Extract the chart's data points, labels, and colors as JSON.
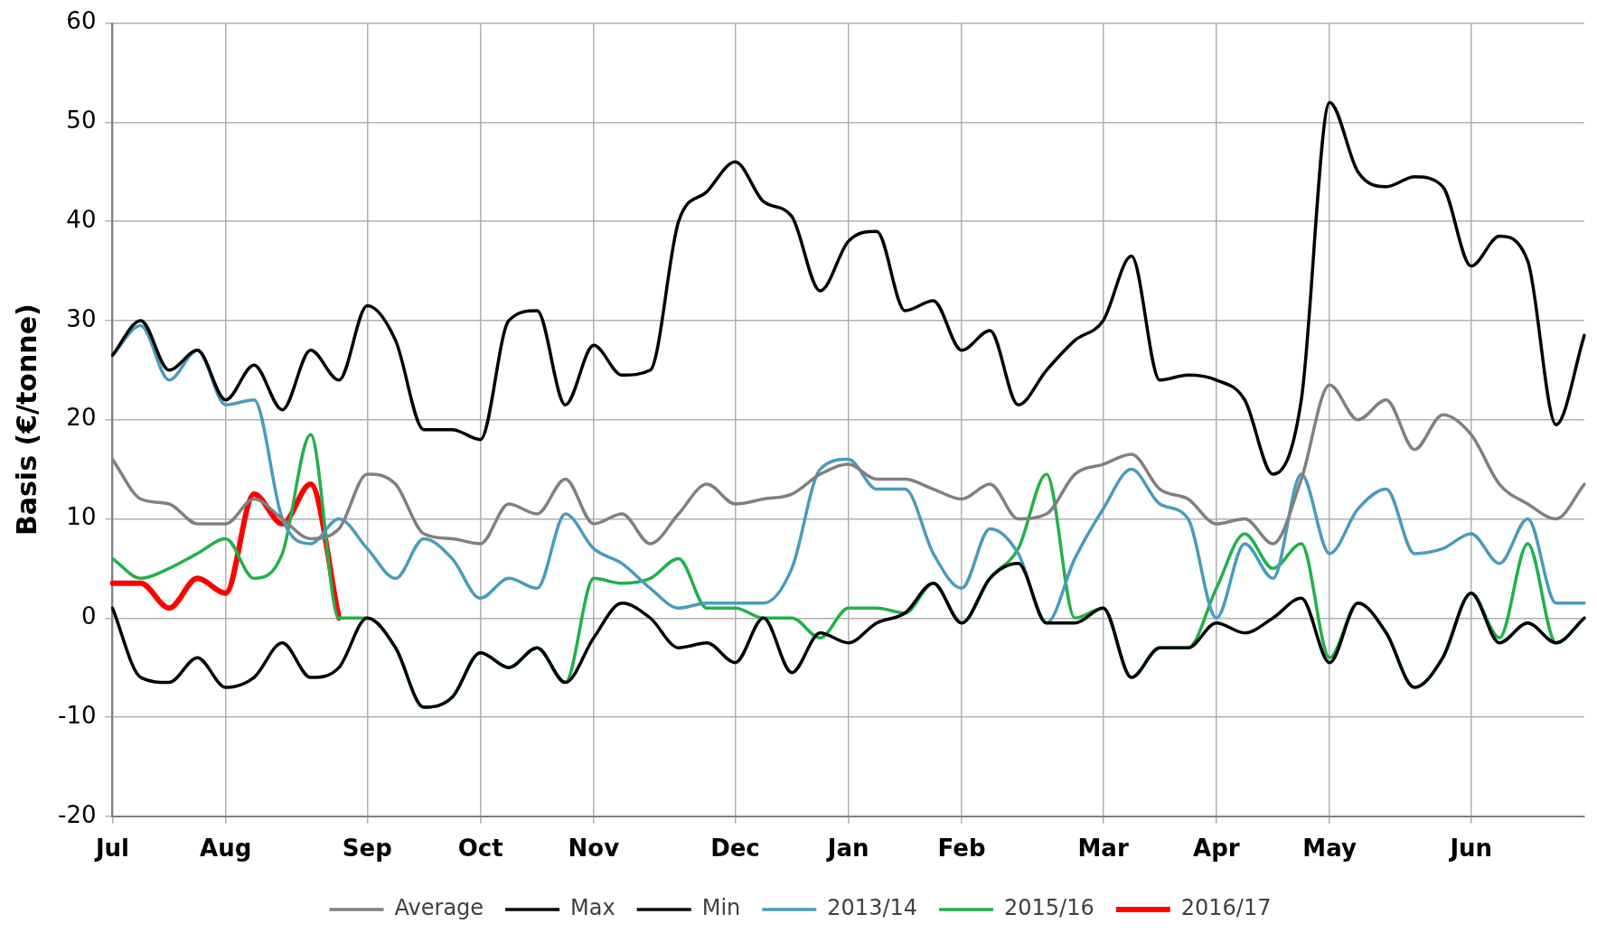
{
  "chart_data": {
    "type": "line",
    "ylabel": "Basis (€/tonne)",
    "ylim": [
      -20,
      60
    ],
    "yticks": [
      -20,
      -10,
      0,
      10,
      20,
      30,
      40,
      50,
      60
    ],
    "categories": [
      "Jul",
      null,
      null,
      null,
      "Aug",
      null,
      null,
      null,
      null,
      "Sep",
      null,
      null,
      null,
      "Oct",
      null,
      null,
      null,
      "Nov",
      null,
      null,
      null,
      null,
      "Dec",
      null,
      null,
      null,
      "Jan",
      null,
      null,
      null,
      "Feb",
      null,
      null,
      null,
      null,
      "Mar",
      null,
      null,
      null,
      "Apr",
      null,
      null,
      null,
      "May",
      null,
      null,
      null,
      null,
      "Jun",
      null,
      null,
      null,
      null
    ],
    "grid": true,
    "legend": "bottom",
    "marker": "none",
    "line_style": "solid",
    "series": [
      {
        "name": "Average",
        "color": "#808080",
        "values": [
          16,
          12,
          11.5,
          9.5,
          9.5,
          12,
          10,
          8,
          9,
          14.5,
          13.5,
          8.5,
          8,
          7.5,
          11.5,
          10.5,
          14,
          9.5,
          10.5,
          7.5,
          10.5,
          13.5,
          11.5,
          12,
          12.5,
          14.5,
          15.5,
          14,
          14,
          13,
          12,
          13.5,
          10,
          10.5,
          14.5,
          15.5,
          16.5,
          13,
          12,
          9.5,
          10,
          7.5,
          14,
          23.5,
          20,
          22,
          17,
          20.5,
          18.5,
          13.5,
          11.5,
          10,
          13.5
        ]
      },
      {
        "name": "Max",
        "color": "#000000",
        "values": [
          26.5,
          30,
          25,
          27,
          22,
          25.5,
          21,
          27,
          24,
          31.5,
          28,
          19,
          19,
          18,
          30,
          31,
          21.5,
          27.5,
          24.5,
          25,
          40,
          43,
          46,
          42,
          40.5,
          33,
          38,
          39,
          31,
          32,
          27,
          29,
          21.5,
          25,
          28,
          30,
          36.5,
          24,
          24.5,
          24,
          22,
          14.5,
          22,
          52,
          45,
          43.5,
          44.5,
          43.5,
          35.5,
          38.5,
          36,
          19.5,
          28.5
        ]
      },
      {
        "name": "Min",
        "color": "#000000",
        "values": [
          1,
          -6,
          -6.5,
          -4,
          -7,
          -6,
          -2.5,
          -6,
          -5,
          0,
          -3,
          -9,
          -8,
          -3.5,
          -5,
          -3,
          -6.5,
          -2,
          1.5,
          0,
          -3,
          -2.5,
          -4.5,
          0,
          -5.5,
          -1.5,
          -2.5,
          -0.5,
          0.5,
          3.5,
          -0.5,
          4,
          5.5,
          -0.5,
          -0.5,
          1,
          -6,
          -3,
          -3,
          -0.5,
          -1.5,
          0,
          2,
          -4.5,
          1.5,
          -1.5,
          -7,
          -4,
          2.5,
          -2.5,
          -0.5,
          -2.5,
          0
        ]
      },
      {
        "name": "2013/14",
        "color": "#4a9bbd",
        "values": [
          26.5,
          29.5,
          24,
          27,
          21.5,
          22,
          10,
          7.5,
          10,
          7,
          4,
          8,
          6,
          2,
          4,
          3,
          10.5,
          7,
          5.5,
          3,
          1,
          1.5,
          1.5,
          1.5,
          5,
          15,
          16,
          13,
          13,
          6.5,
          3,
          9,
          6.5,
          -0.5,
          6,
          11,
          15,
          11.5,
          10,
          0,
          7.5,
          4,
          14.5,
          6.5,
          11,
          13,
          6.5,
          7,
          8.5,
          5.5,
          10,
          1.5,
          1.5
        ]
      },
      {
        "name": "2015/16",
        "color": "#22b04a",
        "values": [
          6,
          4,
          5,
          6.5,
          8,
          4,
          6.5,
          18.5,
          0,
          0,
          -3,
          -9,
          -8,
          -3.5,
          -5,
          -3,
          -6.5,
          4,
          3.5,
          4,
          6,
          1,
          1,
          0,
          0,
          -2,
          1,
          1,
          0.5,
          3.5,
          -0.5,
          4,
          7,
          14.5,
          0,
          1,
          -6,
          -3,
          -3,
          3,
          8.5,
          5,
          7.5,
          -4,
          1.5,
          -1.5,
          -7,
          -4,
          2.5,
          -2,
          7.5,
          -2.5,
          0
        ]
      },
      {
        "name": "2016/17",
        "color": "#ff0000",
        "values": [
          3.5,
          3.5,
          1,
          4,
          2.5,
          12.5,
          9.5,
          13.5,
          0,
          null,
          null,
          null,
          null,
          null,
          null,
          null,
          null,
          null,
          null,
          null,
          null,
          null,
          null,
          null,
          null,
          null,
          null,
          null,
          null,
          null,
          null,
          null,
          null,
          null,
          null,
          null,
          null,
          null,
          null,
          null,
          null,
          null,
          null,
          null,
          null,
          null,
          null,
          null,
          null,
          null,
          null,
          null,
          null
        ]
      }
    ]
  }
}
